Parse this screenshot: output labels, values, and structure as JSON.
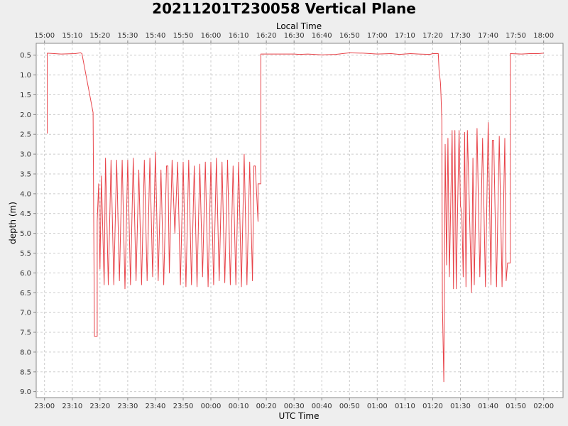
{
  "chart_data": {
    "type": "line",
    "title": "20211201T230058 Vertical Plane",
    "xlabel": "UTC Time",
    "x2label": "Local Time",
    "ylabel": "depth (m)",
    "xlim": [
      "22:57",
      "02:07"
    ],
    "ylim": [
      0.2,
      9.15
    ],
    "y_inverted": true,
    "grid": true,
    "line_color": "#e8444a",
    "utc_ticks": [
      "23:00",
      "23:10",
      "23:20",
      "23:30",
      "23:40",
      "23:50",
      "00:00",
      "00:10",
      "00:20",
      "00:30",
      "00:40",
      "00:50",
      "01:00",
      "01:10",
      "01:20",
      "01:30",
      "01:40",
      "01:50",
      "02:00"
    ],
    "local_ticks": [
      "15:00",
      "15:10",
      "15:20",
      "15:30",
      "15:40",
      "15:50",
      "16:00",
      "16:10",
      "16:20",
      "16:30",
      "16:40",
      "16:50",
      "17:00",
      "17:10",
      "17:20",
      "17:30",
      "17:40",
      "17:50",
      "18:00"
    ],
    "y_ticks": [
      "0.5",
      "1.0",
      "1.5",
      "2.0",
      "2.5",
      "3.0",
      "3.5",
      "4.0",
      "4.5",
      "5.0",
      "5.5",
      "6.0",
      "6.5",
      "7.0",
      "7.5",
      "8.0",
      "8.5",
      "9.0"
    ],
    "series": [
      {
        "points": [
          [
            "23:01",
            2.48
          ],
          [
            "23:01",
            0.45
          ],
          [
            "23:06",
            0.47
          ],
          [
            "23:11",
            0.46
          ],
          [
            "23:13",
            0.44
          ],
          [
            "23:13.5",
            0.46
          ],
          [
            "23:17.5",
            1.95
          ],
          [
            "23:18",
            7.6
          ],
          [
            "23:19",
            7.6
          ],
          [
            "23:19",
            4.7
          ],
          [
            "23:19.5",
            3.75
          ],
          [
            "23:20",
            5.9
          ],
          [
            "23:20.5",
            3.55
          ],
          [
            "23:21.5",
            6.3
          ],
          [
            "23:22",
            3.1
          ],
          [
            "23:23",
            6.3
          ],
          [
            "23:24",
            3.15
          ],
          [
            "23:25",
            6.3
          ],
          [
            "23:26",
            3.15
          ],
          [
            "23:27",
            6.2
          ],
          [
            "23:28",
            3.15
          ],
          [
            "23:29",
            6.4
          ],
          [
            "23:30",
            3.15
          ],
          [
            "23:31",
            6.3
          ],
          [
            "23:32",
            3.1
          ],
          [
            "23:33",
            6.2
          ],
          [
            "23:34",
            3.4
          ],
          [
            "23:35",
            6.3
          ],
          [
            "23:36",
            3.15
          ],
          [
            "23:37",
            6.2
          ],
          [
            "23:38",
            3.1
          ],
          [
            "23:39",
            6.1
          ],
          [
            "23:40",
            2.95
          ],
          [
            "23:41",
            6.2
          ],
          [
            "23:42",
            3.4
          ],
          [
            "23:43",
            6.3
          ],
          [
            "23:44",
            3.3
          ],
          [
            "23:44.5",
            3.3
          ],
          [
            "23:45",
            6.0
          ],
          [
            "23:46",
            3.15
          ],
          [
            "23:47",
            5.0
          ],
          [
            "23:48",
            3.2
          ],
          [
            "23:49",
            6.3
          ],
          [
            "23:50",
            3.2
          ],
          [
            "23:51",
            6.35
          ],
          [
            "23:52",
            3.15
          ],
          [
            "23:53",
            6.3
          ],
          [
            "23:54",
            3.3
          ],
          [
            "23:55",
            6.35
          ],
          [
            "23:56",
            3.25
          ],
          [
            "23:57",
            6.1
          ],
          [
            "23:58",
            3.2
          ],
          [
            "23:59",
            6.35
          ],
          [
            "00:00",
            3.2
          ],
          [
            "00:01",
            6.3
          ],
          [
            "00:02",
            3.1
          ],
          [
            "00:03",
            6.2
          ],
          [
            "00:04",
            3.2
          ],
          [
            "00:05",
            6.25
          ],
          [
            "00:06",
            3.15
          ],
          [
            "00:07",
            6.3
          ],
          [
            "00:08",
            3.3
          ],
          [
            "00:09",
            6.3
          ],
          [
            "00:10",
            3.2
          ],
          [
            "00:11",
            6.35
          ],
          [
            "00:12",
            3.0
          ],
          [
            "00:13",
            6.3
          ],
          [
            "00:14",
            3.2
          ],
          [
            "00:15",
            6.2
          ],
          [
            "00:15.5",
            3.3
          ],
          [
            "00:16",
            3.3
          ],
          [
            "00:17",
            4.7
          ],
          [
            "00:17",
            3.75
          ],
          [
            "00:18",
            3.75
          ],
          [
            "00:18",
            0.47
          ],
          [
            "00:25",
            0.47
          ],
          [
            "00:30",
            0.47
          ],
          [
            "00:32",
            0.48
          ],
          [
            "00:35",
            0.47
          ],
          [
            "00:40",
            0.49
          ],
          [
            "00:45",
            0.48
          ],
          [
            "00:50",
            0.44
          ],
          [
            "00:55",
            0.45
          ],
          [
            "01:00",
            0.47
          ],
          [
            "01:05",
            0.46
          ],
          [
            "01:08",
            0.48
          ],
          [
            "01:12",
            0.46
          ],
          [
            "01:15",
            0.47
          ],
          [
            "01:19",
            0.48
          ],
          [
            "01:20",
            0.46
          ],
          [
            "01:22",
            0.46
          ],
          [
            "01:22.3",
            0.88
          ],
          [
            "01:22.8",
            1.2
          ],
          [
            "01:23",
            1.55
          ],
          [
            "01:23.3",
            2.15
          ],
          [
            "01:23.5",
            6.8
          ],
          [
            "01:24",
            8.75
          ],
          [
            "01:24.5",
            2.75
          ],
          [
            "01:25",
            5.8
          ],
          [
            "01:25.5",
            2.6
          ],
          [
            "01:26",
            6.1
          ],
          [
            "01:27",
            2.4
          ],
          [
            "01:27.5",
            6.4
          ],
          [
            "01:28",
            2.4
          ],
          [
            "01:28.5",
            6.4
          ],
          [
            "01:29",
            4.3
          ],
          [
            "01:29.5",
            2.4
          ],
          [
            "01:30",
            4.3
          ],
          [
            "01:30.5",
            4.5
          ],
          [
            "01:31",
            6.1
          ],
          [
            "01:31.5",
            2.45
          ],
          [
            "01:32",
            6.35
          ],
          [
            "01:32.5",
            2.4
          ],
          [
            "01:33",
            3.7
          ],
          [
            "01:34",
            6.5
          ],
          [
            "01:34.5",
            3.1
          ],
          [
            "01:35",
            6.3
          ],
          [
            "01:36",
            2.35
          ],
          [
            "01:37",
            6.1
          ],
          [
            "01:38",
            2.6
          ],
          [
            "01:39",
            6.35
          ],
          [
            "01:40",
            2.2
          ],
          [
            "01:41",
            6.3
          ],
          [
            "01:41.5",
            2.65
          ],
          [
            "01:42",
            2.65
          ],
          [
            "01:43",
            6.35
          ],
          [
            "01:44",
            2.55
          ],
          [
            "01:45",
            6.35
          ],
          [
            "01:46",
            2.6
          ],
          [
            "01:46.5",
            6.2
          ],
          [
            "01:47",
            5.75
          ],
          [
            "01:48",
            5.75
          ],
          [
            "01:48",
            0.46
          ],
          [
            "01:52",
            0.47
          ],
          [
            "01:55",
            0.46
          ],
          [
            "01:58",
            0.46
          ],
          [
            "02:00",
            0.45
          ]
        ]
      }
    ]
  }
}
